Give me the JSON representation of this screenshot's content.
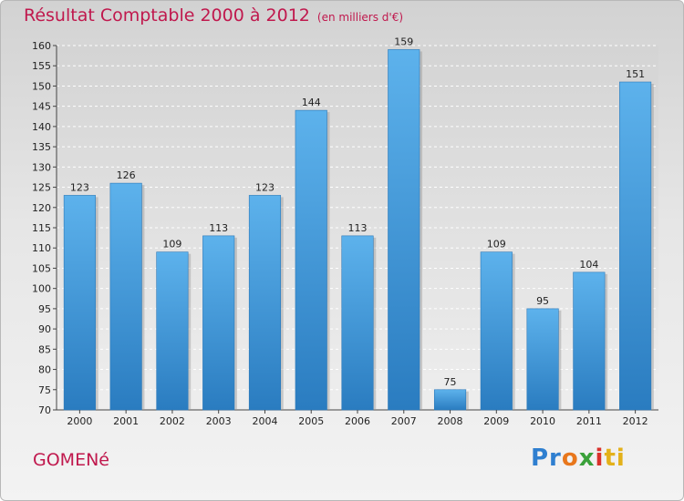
{
  "title": "Résultat Comptable 2000 à 2012",
  "subtitle": "(en milliers d'€)",
  "commune": "GOMENé",
  "logo": [
    "Pr",
    "o",
    "x",
    "i",
    "ti"
  ],
  "colors": {
    "bar": "#5aaee8",
    "bar_dark": "#2a7fc4",
    "title": "#c0184d"
  },
  "chart_data": {
    "type": "bar",
    "title": "Résultat Comptable 2000 à 2012 (en milliers d'€)",
    "xlabel": "",
    "ylabel": "",
    "ylim": [
      70,
      160
    ],
    "yticks": [
      70,
      75,
      80,
      85,
      90,
      95,
      100,
      105,
      110,
      115,
      120,
      125,
      130,
      135,
      140,
      145,
      150,
      155,
      160
    ],
    "categories": [
      "2000",
      "2001",
      "2002",
      "2003",
      "2004",
      "2005",
      "2006",
      "2007",
      "2008",
      "2009",
      "2010",
      "2011",
      "2012"
    ],
    "values": [
      123,
      126,
      109,
      113,
      123,
      144,
      113,
      159,
      75,
      109,
      95,
      104,
      151
    ],
    "grid": true
  }
}
